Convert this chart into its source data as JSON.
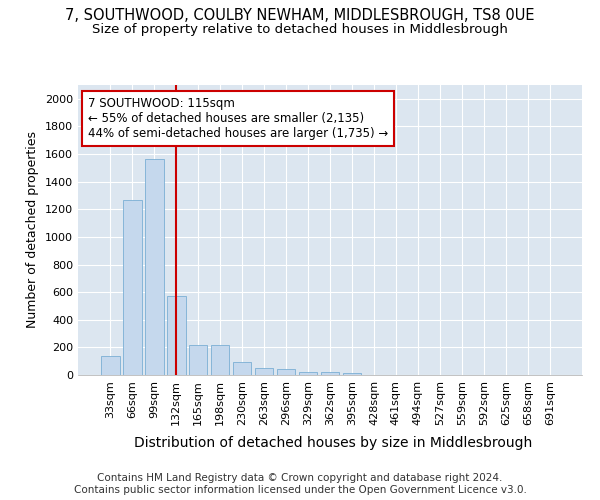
{
  "title1": "7, SOUTHWOOD, COULBY NEWHAM, MIDDLESBROUGH, TS8 0UE",
  "title2": "Size of property relative to detached houses in Middlesbrough",
  "xlabel": "Distribution of detached houses by size in Middlesbrough",
  "ylabel": "Number of detached properties",
  "categories": [
    "33sqm",
    "66sqm",
    "99sqm",
    "132sqm",
    "165sqm",
    "198sqm",
    "230sqm",
    "263sqm",
    "296sqm",
    "329sqm",
    "362sqm",
    "395sqm",
    "428sqm",
    "461sqm",
    "494sqm",
    "527sqm",
    "559sqm",
    "592sqm",
    "625sqm",
    "658sqm",
    "691sqm"
  ],
  "values": [
    140,
    1265,
    1565,
    570,
    215,
    215,
    95,
    50,
    40,
    25,
    20,
    15,
    0,
    0,
    0,
    0,
    0,
    0,
    0,
    0,
    0
  ],
  "bar_color": "#c5d8ed",
  "bar_edge_color": "#7bafd4",
  "vline_x_idx": 3.0,
  "vline_color": "#cc0000",
  "annotation_text": "7 SOUTHWOOD: 115sqm\n← 55% of detached houses are smaller (2,135)\n44% of semi-detached houses are larger (1,735) →",
  "annotation_box_color": "#ffffff",
  "annotation_box_edge": "#cc0000",
  "ylim": [
    0,
    2100
  ],
  "yticks": [
    0,
    200,
    400,
    600,
    800,
    1000,
    1200,
    1400,
    1600,
    1800,
    2000
  ],
  "footnote": "Contains HM Land Registry data © Crown copyright and database right 2024.\nContains public sector information licensed under the Open Government Licence v3.0.",
  "fig_bg_color": "#ffffff",
  "plot_bg_color": "#dce6f0",
  "grid_color": "#ffffff",
  "title1_fontsize": 10.5,
  "title2_fontsize": 9.5,
  "xlabel_fontsize": 10,
  "ylabel_fontsize": 9,
  "tick_fontsize": 8,
  "annotation_fontsize": 8.5,
  "footnote_fontsize": 7.5
}
